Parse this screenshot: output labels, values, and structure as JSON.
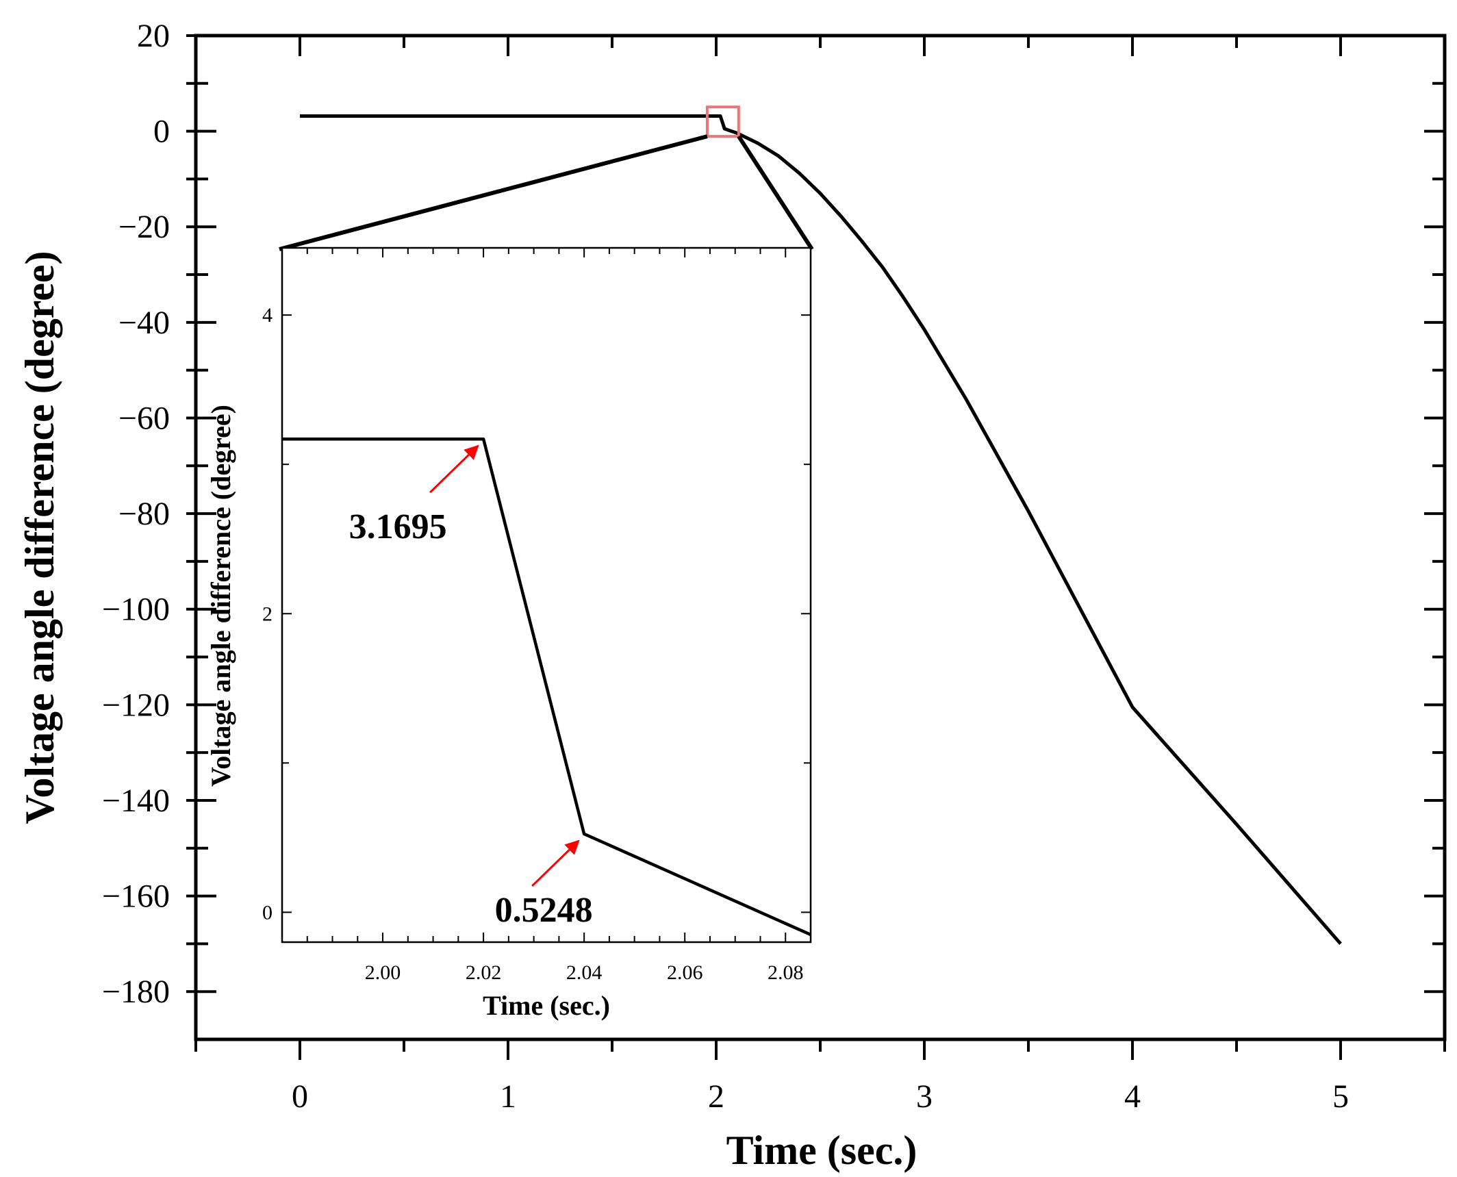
{
  "chart_data": [
    {
      "type": "line",
      "name": "main",
      "xlabel": "Time (sec.)",
      "ylabel": "Voltage angle difference (degree)",
      "xlim": [
        -0.5,
        5.5
      ],
      "ylim": [
        -190,
        20
      ],
      "xticks": [
        0,
        1,
        2,
        3,
        4,
        5
      ],
      "xtick_labels": [
        "0",
        "1",
        "2",
        "3",
        "4",
        "5"
      ],
      "yticks": [
        20,
        0,
        -20,
        -40,
        -60,
        -80,
        -100,
        -120,
        -140,
        -160,
        -180
      ],
      "ytick_labels": [
        "20",
        "0",
        "−20",
        "−40",
        "−60",
        "−80",
        "−100",
        "−120",
        "−140",
        "−160",
        "−180"
      ],
      "series": [
        {
          "name": "Voltage angle difference",
          "x": [
            0,
            2.0,
            2.02,
            2.04,
            2.06,
            2.1,
            2.2,
            2.3,
            2.4,
            2.5,
            2.6,
            2.7,
            2.8,
            2.9,
            3.0,
            3.2,
            3.5,
            4.0,
            4.5,
            5.0
          ],
          "y": [
            3.17,
            3.17,
            3.17,
            0.52,
            0.2,
            -0.4,
            -2.5,
            -5.2,
            -8.8,
            -13.0,
            -17.8,
            -23.0,
            -28.5,
            -34.8,
            -41.5,
            -56.0,
            -79.5,
            -120.5,
            -145.0,
            -170.0
          ]
        }
      ],
      "zoom_box": {
        "x": [
          1.98,
          2.085
        ],
        "y": [
          -0.5,
          4.5
        ],
        "color": "#e8777d"
      }
    },
    {
      "type": "line",
      "name": "inset",
      "xlabel": "Time (sec.)",
      "ylabel": "Voltage angle difference (degree)",
      "xlim": [
        1.98,
        2.085
      ],
      "ylim": [
        -0.2,
        4.45
      ],
      "xticks": [
        2.0,
        2.02,
        2.04,
        2.06,
        2.08
      ],
      "xtick_labels": [
        "2.00",
        "2.02",
        "2.04",
        "2.06",
        "2.08"
      ],
      "yticks": [
        0,
        2,
        4
      ],
      "ytick_labels": [
        "0",
        "2",
        "4"
      ],
      "series": [
        {
          "name": "Voltage angle difference (zoom)",
          "x": [
            1.98,
            2.02,
            2.04,
            2.085
          ],
          "y": [
            3.1695,
            3.1695,
            0.5248,
            -0.15
          ]
        }
      ],
      "annotations": [
        {
          "text": "3.1695",
          "x": 2.02,
          "y": 3.1695,
          "arrow_color": "#ff0000"
        },
        {
          "text": "0.5248",
          "x": 2.04,
          "y": 0.5248,
          "arrow_color": "#ff0000"
        }
      ]
    }
  ]
}
